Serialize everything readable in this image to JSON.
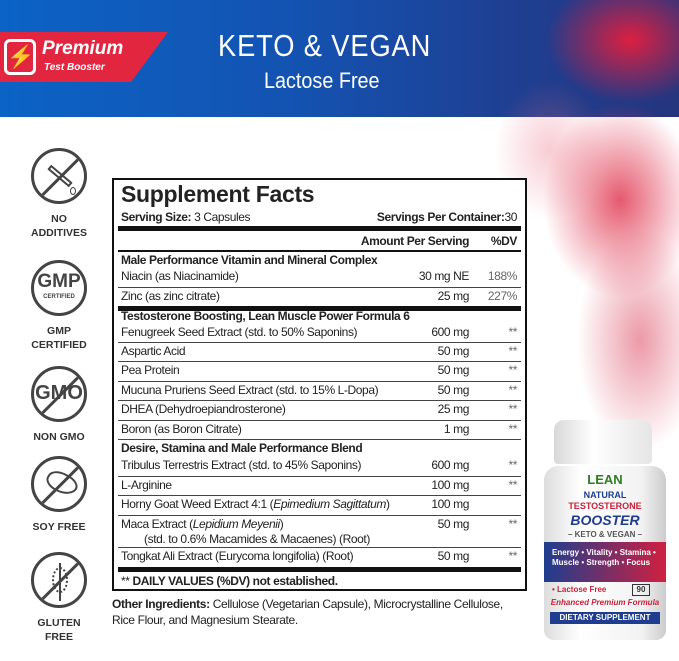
{
  "banner": {
    "badge_title": "Premium",
    "badge_subtitle": "Test Booster",
    "headline": "KETO & VEGAN",
    "subheadline": "Lactose Free"
  },
  "badges": [
    {
      "icon": "no-additives-icon",
      "lines": [
        "NO",
        "ADDITIVES"
      ]
    },
    {
      "icon": "gmp-certified-icon",
      "icon_text": "GMP",
      "icon_subtext": "CERTIFIED",
      "lines": [
        "GMP",
        "CERTIFIED"
      ]
    },
    {
      "icon": "non-gmo-icon",
      "icon_text": "GMO",
      "lines": [
        "NON GMO"
      ]
    },
    {
      "icon": "soy-free-icon",
      "lines": [
        "SOY FREE"
      ]
    },
    {
      "icon": "gluten-free-icon",
      "lines": [
        "GLUTEN",
        "FREE"
      ]
    }
  ],
  "facts": {
    "title": "Supplement Facts",
    "serving_size_label": "Serving Size:",
    "serving_size": "3 Capsules",
    "servings_label": "Servings Per Container:",
    "servings": "30",
    "amount_header": "Amount Per Serving",
    "dv_header": "%DV",
    "sections": [
      {
        "title": "Male Performance Vitamin and Mineral Complex",
        "rows": [
          {
            "name": "Niacin (as Niacinamide)",
            "amount": "30 mg NE",
            "dv": "188%"
          },
          {
            "name": "Zinc (as zinc citrate)",
            "amount": "25 mg",
            "dv": "227%"
          }
        ]
      },
      {
        "title": "Testosterone Boosting, Lean Muscle Power Formula 6",
        "rows": [
          {
            "name": "Fenugreek Seed Extract (std. to 50% Saponins)",
            "amount": "600 mg",
            "dv": "**"
          },
          {
            "name": "Aspartic Acid",
            "amount": "50 mg",
            "dv": "**"
          },
          {
            "name": "Pea Protein",
            "amount": "50 mg",
            "dv": "**"
          },
          {
            "name": "Mucuna Pruriens Seed Extract (std. to 15% L-Dopa)",
            "amount": "50 mg",
            "dv": "**"
          },
          {
            "name": "DHEA (Dehydroepiandrosterone)",
            "amount": "25 mg",
            "dv": "**"
          },
          {
            "name": "Boron (as Boron Citrate)",
            "amount": "1 mg",
            "dv": "**"
          }
        ]
      },
      {
        "title": "Desire, Stamina and Male Performance Blend",
        "rows": [
          {
            "name": "Tribulus Terrestris Extract (std. to 45% Saponins)",
            "amount": "600 mg",
            "dv": "**"
          },
          {
            "name": "L-Arginine",
            "amount": "100 mg",
            "dv": "**"
          },
          {
            "name": "Horny Goat Weed Extract 4:1 ",
            "name_italic": "Epimedium Sagittatum",
            "amount": "100 mg",
            "dv": ""
          },
          {
            "name": "Maca Extract ",
            "name_italic": "Lepidium Meyenii",
            "name_line2": "(std. to 0.6% Macamides & Macaenes) (Root)",
            "amount": "50 mg",
            "dv": "**"
          },
          {
            "name": "Tongkat Ali Extract (Eurycoma longifolia) (Root)",
            "amount": "50 mg",
            "dv": "**"
          }
        ]
      }
    ],
    "footnote_stars": "**",
    "footnote": "DAILY VALUES (%DV) not established."
  },
  "other": {
    "label": "Other Ingredients:",
    "text": "Cellulose (Vegetarian Capsule), Microcrystalline Cellulose, Rice Flour, and Magnesium Stearate."
  },
  "bottle": {
    "brand": "LEAN",
    "line1": "NATURAL",
    "line2": "TESTOSTERONE",
    "line3": "BOOSTER",
    "line4": "– KETO & VEGAN –",
    "benefits": "Energy • Vitality • Stamina • Muscle • Strength • Focus",
    "lactose": "• Lactose Free",
    "count": "90",
    "tagline": "Enhanced Premium Formula",
    "category": "DIETARY SUPPLEMENT"
  },
  "colors": {
    "banner_blue": "#0b63c6",
    "banner_navy": "#25357e",
    "badge_red": "#e3263f",
    "splash_red": "#e61e3c"
  }
}
